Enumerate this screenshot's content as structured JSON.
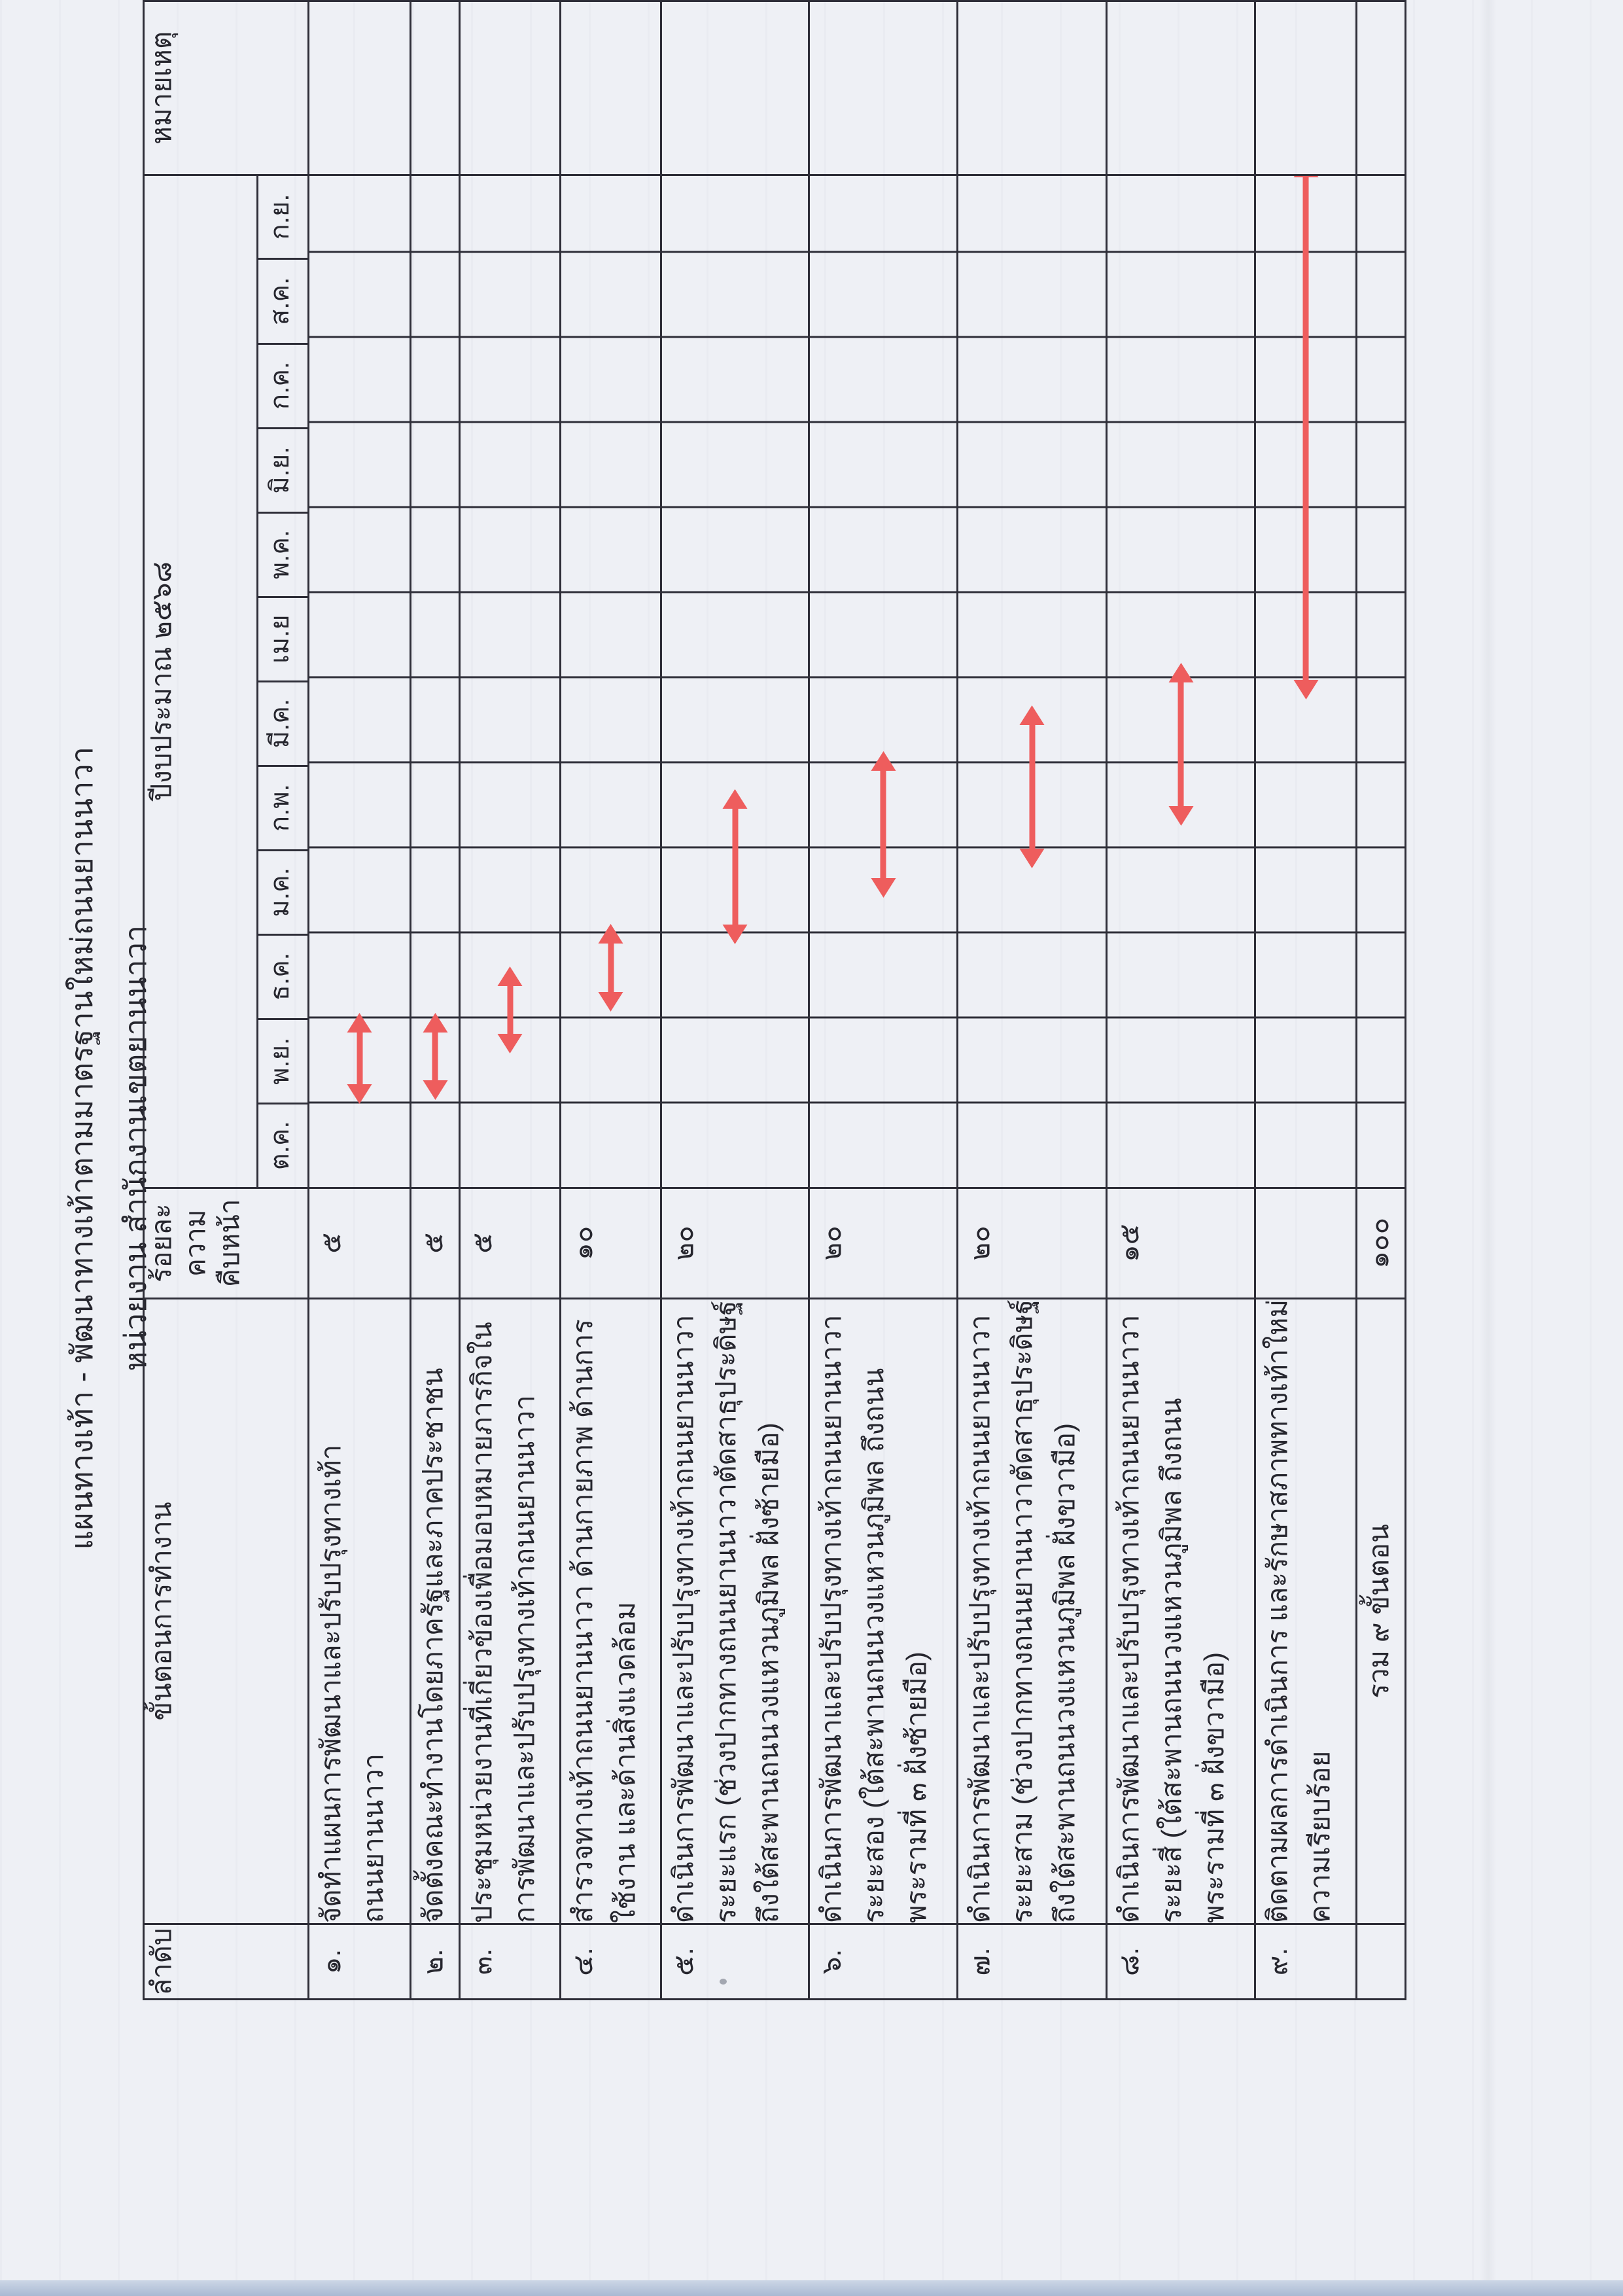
{
  "page": {
    "title_line1": "แผนทางเท้า - พัฒนาทางเท้าตามมาตรฐานใหม่ถนนยานนาวา",
    "title_line2": "หน่วยงาน สำนักงานเขตยานนาวา"
  },
  "colors": {
    "arrow": "#ee5d5d",
    "table_border": "#2e2e38",
    "paper": "#eef0f5"
  },
  "table": {
    "headers": {
      "order": "ลำดับ",
      "step": "ขั้นตอนการทำงาน",
      "percent_lines": [
        "ร้อยละ",
        "ความ",
        "คืบหน้า"
      ],
      "fiscal_year": "ปีงบประมาณ ๒๕๖๘",
      "remarks": "หมายเหตุ"
    },
    "months": [
      "ต.ค.",
      "พ.ย.",
      "ธ.ค.",
      "ม.ค.",
      "ก.พ.",
      "มี.ค.",
      "เม.ย",
      "พ.ค.",
      "มิ.ย.",
      "ก.ค.",
      "ส.ค.",
      "ก.ย."
    ],
    "rows": [
      {
        "no": "๑.",
        "lines": [
          "จัดทำแผนการพัฒนาและปรับปรุงทางเท้า",
          "ถนนยานนาวา"
        ],
        "percent": "๕",
        "bar": {
          "start": 1.2,
          "end": 1.85
        }
      },
      {
        "no": "๒.",
        "lines": [
          "จัดตั้งคณะทำงานโดยภาครัฐและภาคประชาชน"
        ],
        "percent": "๕",
        "bar": {
          "start": 1.25,
          "end": 1.85
        }
      },
      {
        "no": "๓.",
        "lines": [
          "ประชุมหน่วยงานที่เกี่ยวข้องเพื่อมอบหมายภารกิจใน",
          "การพัฒนาและปรับปรุงทางเท้าถนนยานนาวา"
        ],
        "percent": "๕",
        "bar": {
          "start": 1.8,
          "end": 2.4
        }
      },
      {
        "no": "๔.",
        "lines": [
          "สำรวจทางเท้าถนนยานนาวา ด้านกายภาพ ด้านการ",
          "ใช้งาน และด้านสิ่งแวดล้อม"
        ],
        "percent": "๑๐",
        "bar": {
          "start": 2.3,
          "end": 2.9
        }
      },
      {
        "no": "๕.",
        "lines": [
          "ดำเนินการพัฒนาและปรับปรุงทางเท้าถนนยานนาวา",
          "ระยะแรก (ช่วงปากทางถนนยานนาวาตัดสาธุประดิษฐ์",
          "ถึงใต้สะพานถนนวงแหวนภูมิพล ฝั่งซ้ายมือ)"
        ],
        "percent": "๒๐",
        "bar": {
          "start": 3.1,
          "end": 4.5
        }
      },
      {
        "no": "๖.",
        "lines": [
          "ดำเนินการพัฒนาและปรับปรุงทางเท้าถนนยานนาวา",
          "ระยะสอง (ใต้สะพานถนนวงแหวนภูมิพล ถึงถนน",
          "พระรามที่ ๓ ฝั่งซ้ายมือ)"
        ],
        "percent": "๒๐",
        "bar": {
          "start": 3.65,
          "end": 4.95
        }
      },
      {
        "no": "๗.",
        "lines": [
          "ดำเนินการพัฒนาและปรับปรุงทางเท้าถนนยานนาวา",
          "ระยะสาม (ช่วงปากทางถนนยานนาวาตัดสาธุประดิษฐ์",
          "ถึงใต้สะพานถนนวงแหวนภูมิพล ฝั่งขวามือ)"
        ],
        "percent": "๒๐",
        "bar": {
          "start": 4.0,
          "end": 5.5
        }
      },
      {
        "no": "๘.",
        "lines": [
          "ดำเนินการพัฒนาและปรับปรุงทางเท้าถนนยานนาวา",
          "ระยะสี่ (ใต้สะพานถนนวงแหวนภูมิพล ถึงถนน",
          "พระรามที่ ๓ ฝั่งขวามือ)"
        ],
        "percent": "๑๕",
        "bar": {
          "start": 4.5,
          "end": 6.0
        }
      },
      {
        "no": "๙.",
        "lines": [
          "ติดตามผลการดำเนินการ และรักษาสภาพทางเท้าใหม่",
          "ความเรียบร้อย"
        ],
        "percent": "",
        "bar": {
          "start": 6.0,
          "end": 12.0
        }
      }
    ],
    "total": {
      "label": "รวม ๙ ขั้นตอน",
      "percent": "๑๐๐"
    }
  },
  "chart_data": {
    "type": "gantt",
    "title": "แผนทางเท้า - พัฒนาทางเท้าตามมาตรฐานใหม่ถนนยานนาวา",
    "x_axis_months": [
      "ต.ค.",
      "พ.ย.",
      "ธ.ค.",
      "ม.ค.",
      "ก.พ.",
      "มี.ค.",
      "เม.ย",
      "พ.ค.",
      "มิ.ย.",
      "ก.ค.",
      "ส.ค.",
      "ก.ย."
    ],
    "fiscal_year_be": 2568,
    "tasks": [
      {
        "step": 1,
        "percent": 5,
        "start_month": 1.2,
        "end_month": 1.85
      },
      {
        "step": 2,
        "percent": 5,
        "start_month": 1.25,
        "end_month": 1.85
      },
      {
        "step": 3,
        "percent": 5,
        "start_month": 1.8,
        "end_month": 2.4
      },
      {
        "step": 4,
        "percent": 10,
        "start_month": 2.3,
        "end_month": 2.9
      },
      {
        "step": 5,
        "percent": 20,
        "start_month": 3.1,
        "end_month": 4.5
      },
      {
        "step": 6,
        "percent": 20,
        "start_month": 3.65,
        "end_month": 4.95
      },
      {
        "step": 7,
        "percent": 20,
        "start_month": 4.0,
        "end_month": 5.5
      },
      {
        "step": 8,
        "percent": 15,
        "start_month": 4.5,
        "end_month": 6.0
      },
      {
        "step": 9,
        "percent": null,
        "start_month": 6.0,
        "end_month": 12.0
      }
    ],
    "total_percent": 100
  }
}
